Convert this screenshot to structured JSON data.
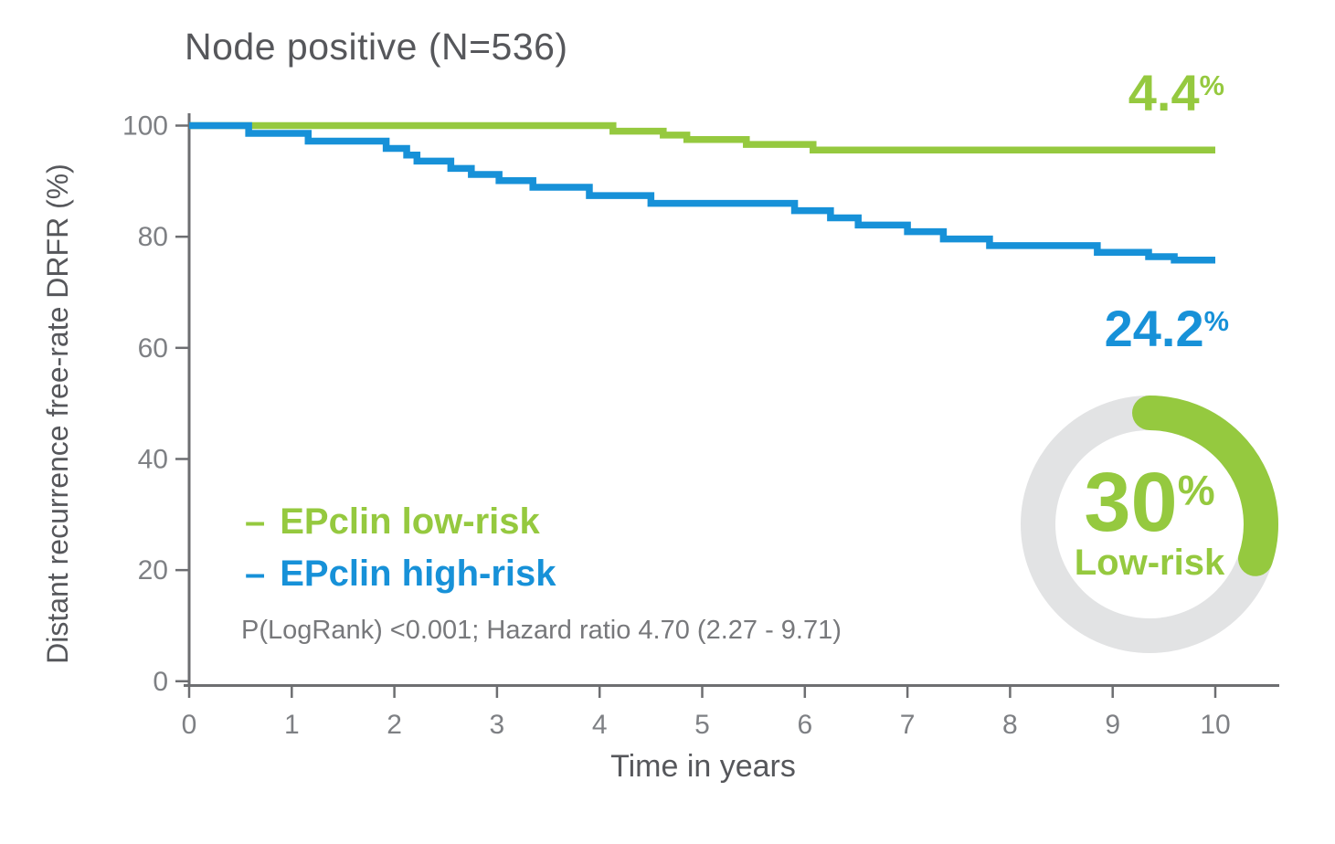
{
  "page": {
    "title": "Node positive (N=536)"
  },
  "colors": {
    "green": "#95c93f",
    "blue": "#1791d8",
    "ring_gray": "#e2e3e4",
    "title_gray": "#56575b",
    "tick_gray": "#7e8084",
    "axis_gray": "#6d6e71",
    "stats_gray": "#77787b"
  },
  "annotations": {
    "low_value": "4.4",
    "high_value": "24.2",
    "sup": "%"
  },
  "legend": [
    {
      "dash": "–",
      "label": "EPclin low-risk"
    },
    {
      "dash": "–",
      "label": "EPclin high-risk"
    }
  ],
  "stats": {
    "text": "P(LogRank) <0.001; Hazard ratio 4.70 (2.27 - 9.71)"
  },
  "axis": {
    "x_title": "Time in years",
    "y_title": "Distant recurrence free-rate DRFR (%)"
  },
  "donut": {
    "value": "30",
    "sup": "%",
    "label": "Low-risk",
    "percent": 30
  },
  "chart_data": {
    "type": "line",
    "subtype": "kaplan-meier-step",
    "title": "Node positive (N=536)",
    "xlabel": "Time in years",
    "ylabel": "Distant recurrence free-rate DRFR (%)",
    "xlim": [
      0,
      10
    ],
    "ylim": [
      0,
      100
    ],
    "x_ticks": [
      0,
      1,
      2,
      3,
      4,
      5,
      6,
      7,
      8,
      9,
      10
    ],
    "y_ticks": [
      0,
      20,
      40,
      60,
      80,
      100
    ],
    "grid": false,
    "legend_position": "inside-lower-left",
    "series": [
      {
        "name": "EPclin low-risk",
        "color_key": "green",
        "final_value": 95.6,
        "risk_label": "4.4%",
        "steps": [
          [
            0,
            100
          ],
          [
            4.13,
            99.0
          ],
          [
            4.62,
            98.3
          ],
          [
            4.85,
            97.5
          ],
          [
            5.43,
            96.6
          ],
          [
            6.08,
            95.6
          ],
          [
            10,
            95.6
          ]
        ]
      },
      {
        "name": "EPclin high-risk",
        "color_key": "blue",
        "final_value": 75.8,
        "risk_label": "24.2%",
        "steps": [
          [
            0,
            100
          ],
          [
            0.58,
            98.6
          ],
          [
            1.16,
            97.2
          ],
          [
            1.92,
            95.9
          ],
          [
            2.12,
            94.7
          ],
          [
            2.22,
            93.6
          ],
          [
            2.55,
            92.3
          ],
          [
            2.75,
            91.2
          ],
          [
            3.02,
            90.1
          ],
          [
            3.35,
            88.9
          ],
          [
            3.9,
            87.4
          ],
          [
            4.5,
            86.0
          ],
          [
            5.9,
            84.7
          ],
          [
            6.25,
            83.4
          ],
          [
            6.52,
            82.1
          ],
          [
            7.0,
            80.9
          ],
          [
            7.35,
            79.6
          ],
          [
            7.8,
            78.4
          ],
          [
            8.85,
            77.2
          ],
          [
            9.35,
            76.4
          ],
          [
            9.6,
            75.8
          ],
          [
            10,
            75.8
          ]
        ]
      }
    ]
  }
}
